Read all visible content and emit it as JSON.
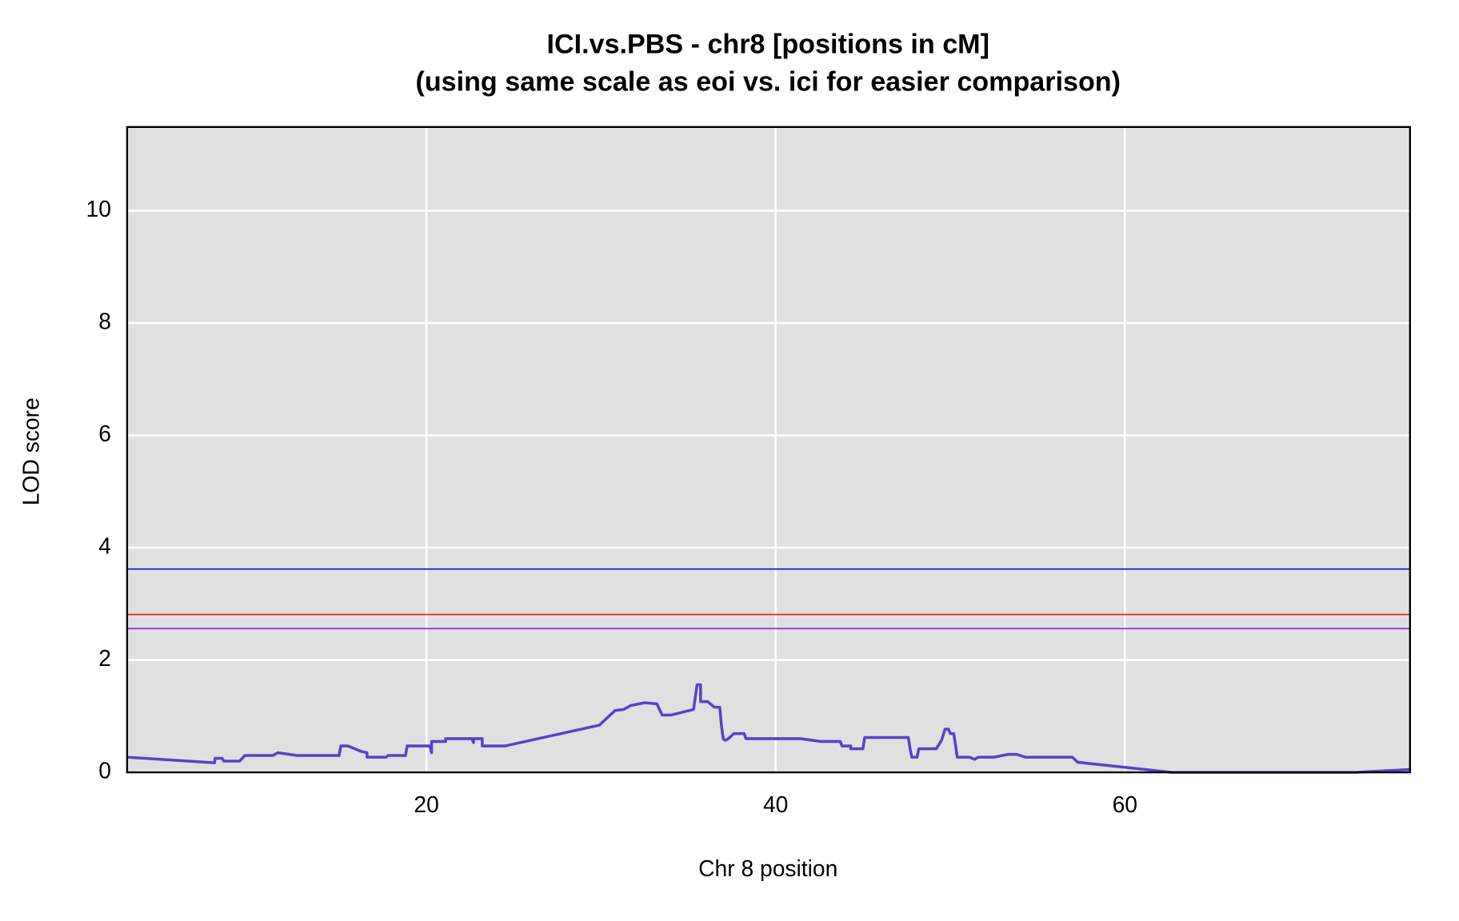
{
  "chart_data": {
    "type": "line",
    "title": "ICI.vs.PBS - chr8 [positions in cM]",
    "subtitle": "(using same scale as eoi vs. ici for easier comparison)",
    "x_label": "Chr 8 position",
    "y_label": "LOD score",
    "xlim": [
      2.86,
      76.33
    ],
    "xticks": [
      20,
      40,
      60
    ],
    "ylim": [
      0,
      11.49
    ],
    "yticks": [
      0,
      2,
      4,
      6,
      8,
      10
    ],
    "grid": true,
    "hlines": [
      {
        "value": 3.62,
        "color": "#1a1ad6"
      },
      {
        "value": 2.81,
        "color": "#e8231f"
      },
      {
        "value": 2.56,
        "color": "#8a2be2"
      }
    ],
    "x": [
      2.86,
      7.87,
      7.9,
      8.3,
      8.4,
      9.3,
      9.6,
      11.2,
      11.5,
      12.6,
      15.0,
      15.1,
      15.5,
      16.3,
      16.6,
      16.6,
      17.7,
      17.8,
      18.8,
      18.9,
      20.2,
      20.3,
      20.3,
      21.1,
      21.1,
      22.6,
      22.7,
      22.7,
      23.2,
      23.2,
      24.5,
      29.9,
      30.8,
      31.3,
      31.7,
      32.5,
      33.2,
      33.5,
      34.0,
      35.3,
      35.5,
      35.7,
      35.7,
      36.1,
      36.5,
      36.8,
      36.9,
      37.0,
      37.1,
      37.3,
      37.6,
      38.2,
      38.3,
      41.4,
      42.6,
      43.7,
      43.8,
      44.3,
      44.3,
      45.0,
      45.1,
      47.6,
      47.7,
      47.8,
      48.1,
      48.2,
      49.2,
      49.5,
      49.7,
      49.9,
      50.0,
      50.2,
      50.3,
      50.4,
      51.1,
      51.4,
      51.6,
      52.5,
      53.3,
      53.8,
      54.3,
      57.0,
      57.3,
      62.7,
      73.2,
      76.3
    ],
    "series": [
      {
        "color": "#5544c8",
        "values": [
          0.27,
          0.17,
          0.25,
          0.25,
          0.2,
          0.2,
          0.3,
          0.3,
          0.35,
          0.3,
          0.3,
          0.47,
          0.47,
          0.37,
          0.35,
          0.27,
          0.27,
          0.3,
          0.3,
          0.47,
          0.47,
          0.35,
          0.55,
          0.55,
          0.6,
          0.6,
          0.53,
          0.6,
          0.6,
          0.47,
          0.47,
          0.84,
          1.1,
          1.12,
          1.19,
          1.24,
          1.22,
          1.02,
          1.02,
          1.12,
          1.56,
          1.56,
          1.26,
          1.26,
          1.16,
          1.16,
          0.82,
          0.6,
          0.57,
          0.6,
          0.69,
          0.69,
          0.6,
          0.6,
          0.55,
          0.55,
          0.47,
          0.47,
          0.42,
          0.42,
          0.62,
          0.62,
          0.42,
          0.27,
          0.27,
          0.42,
          0.42,
          0.57,
          0.77,
          0.77,
          0.69,
          0.69,
          0.49,
          0.27,
          0.27,
          0.23,
          0.27,
          0.27,
          0.32,
          0.32,
          0.27,
          0.27,
          0.18,
          0.0,
          0.0,
          0.05
        ]
      }
    ]
  }
}
